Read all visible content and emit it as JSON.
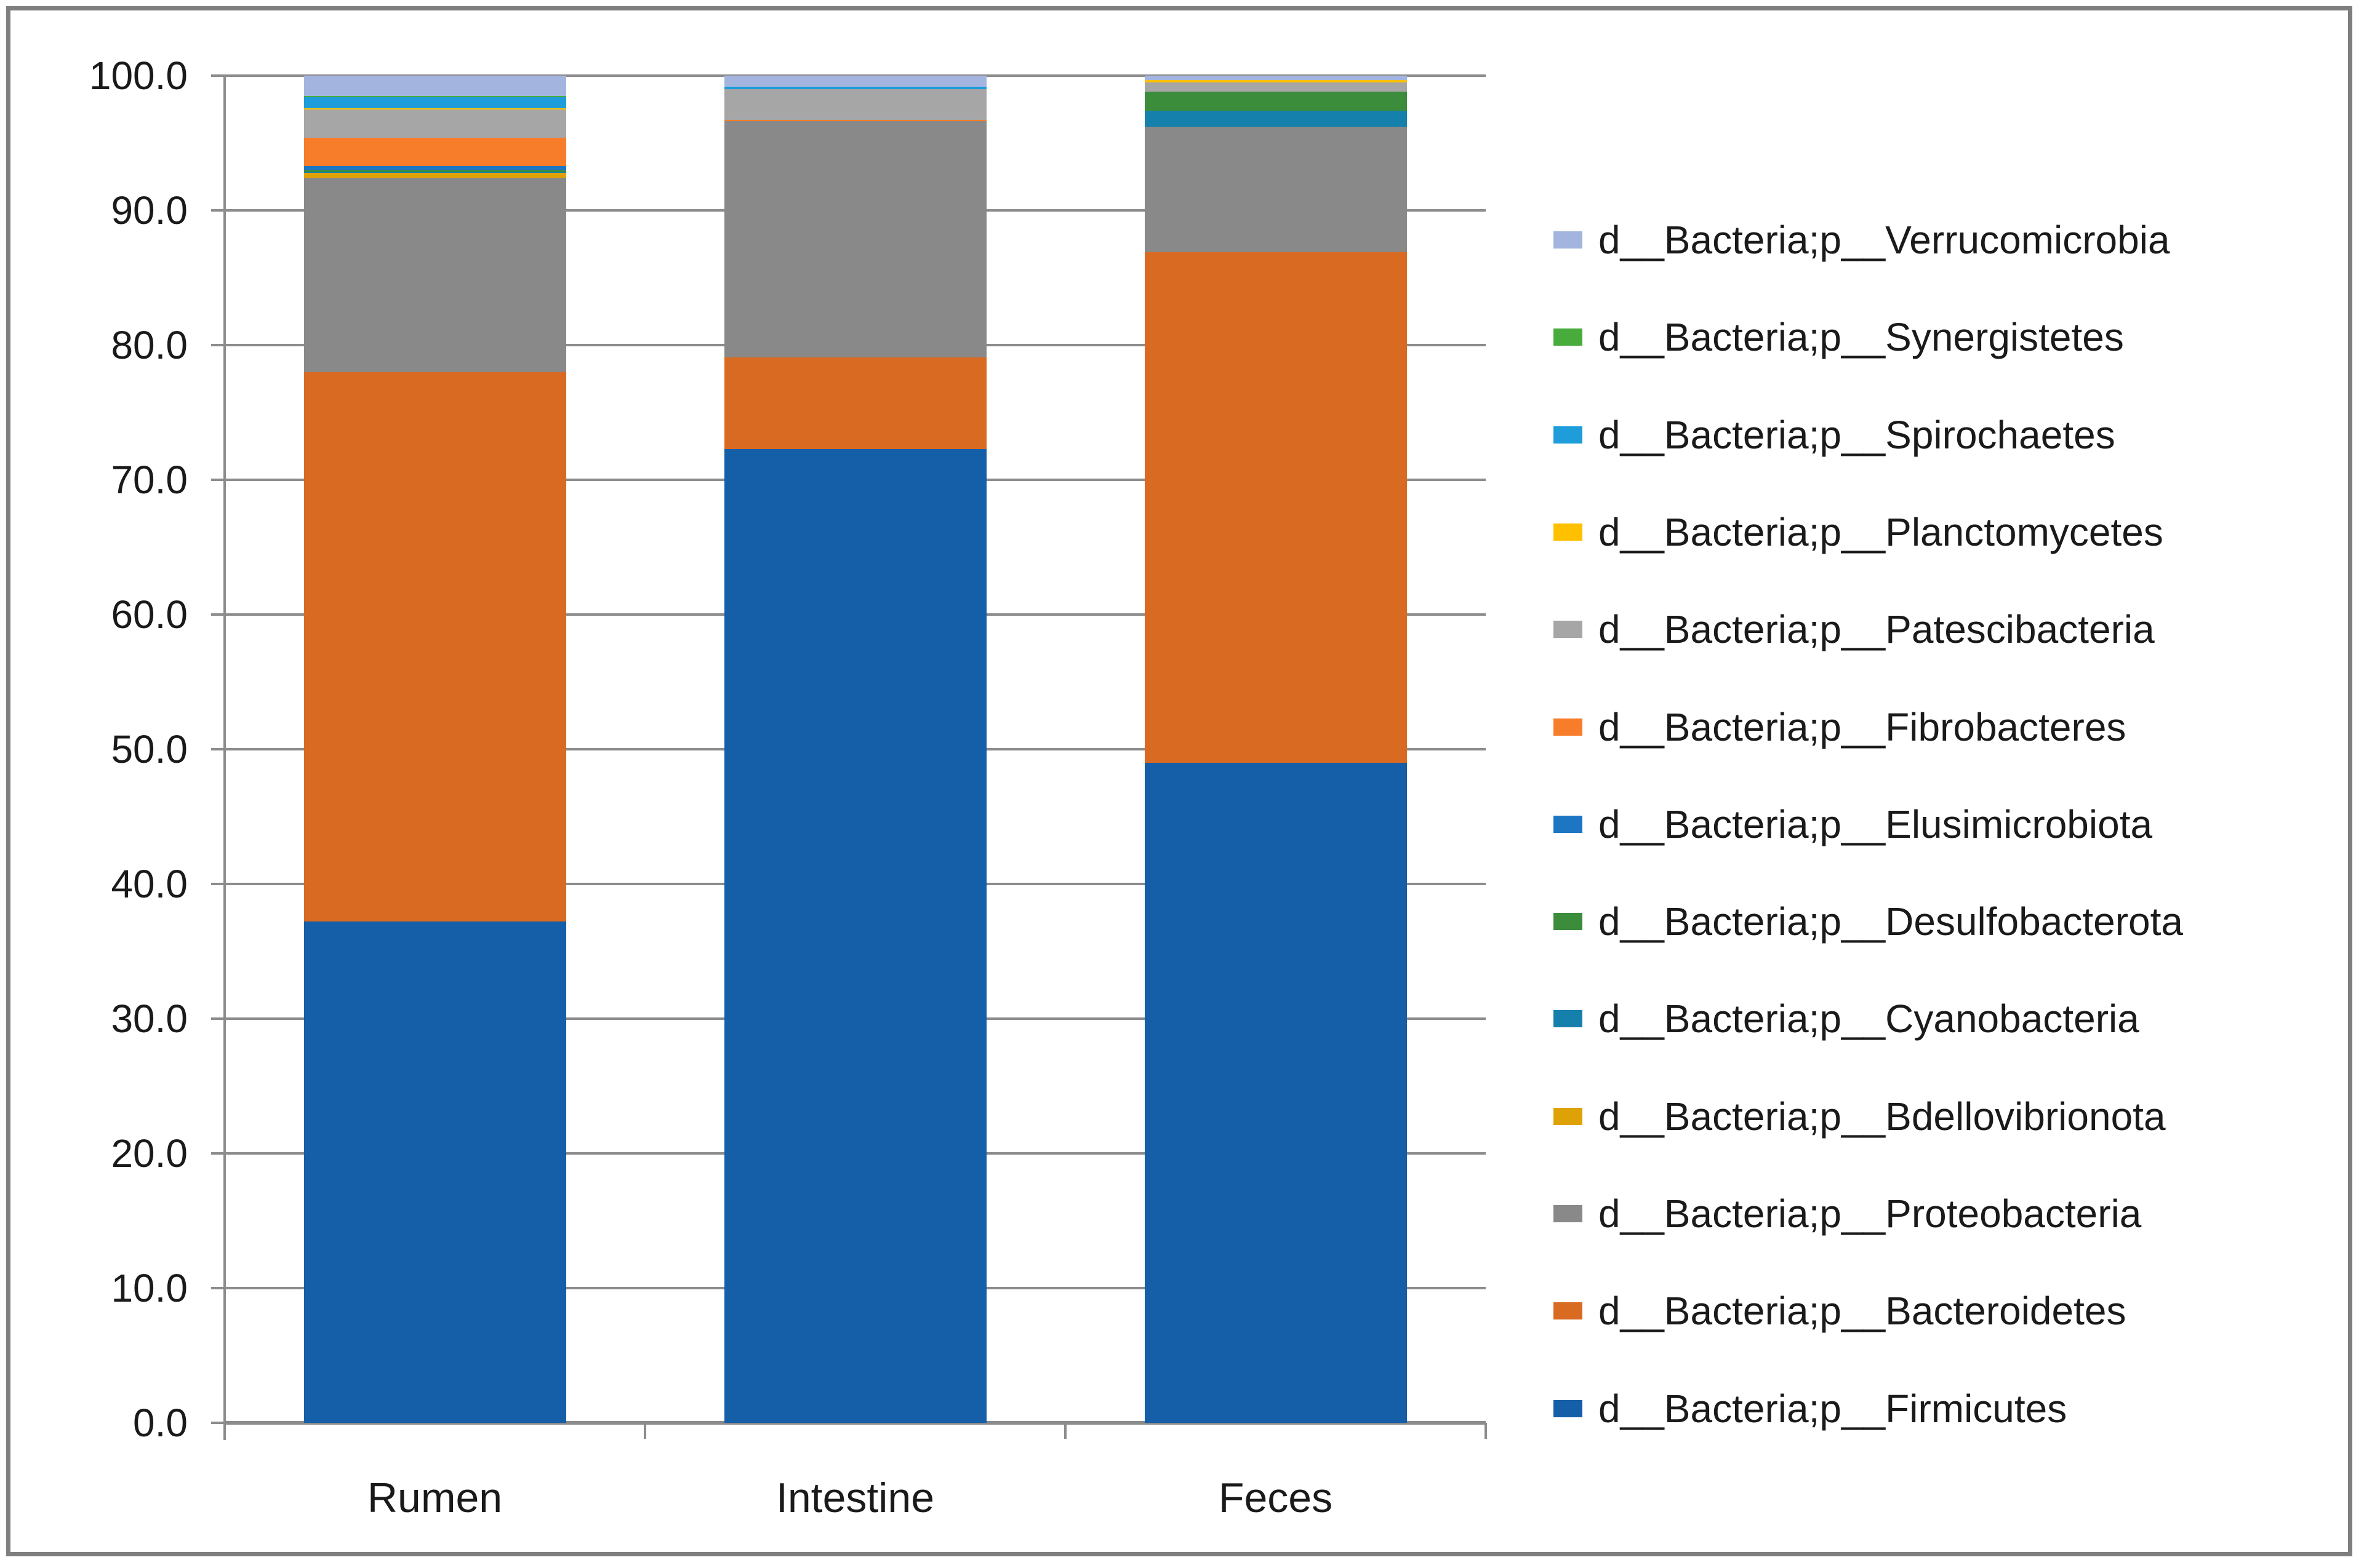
{
  "chart_data": {
    "type": "bar",
    "stacking": "percent",
    "title": "",
    "xlabel": "",
    "ylabel": "",
    "grid": true,
    "legend_position": "right",
    "legend_order": "reverse-of-stacking",
    "categories": [
      "Rumen",
      "Intestine",
      "Feces"
    ],
    "series": [
      {
        "name": "d__Bacteria;p__Firmicutes",
        "color": "#155EA8",
        "values": [
          37.2,
          72.3,
          49.0
        ]
      },
      {
        "name": "d__Bacteria;p__Bacteroidetes",
        "color": "#D96A22",
        "values": [
          40.8,
          6.8,
          37.9
        ]
      },
      {
        "name": "d__Bacteria;p__Proteobacteria",
        "color": "#898989",
        "values": [
          14.4,
          17.5,
          9.3
        ]
      },
      {
        "name": "d__Bacteria;p__Bdellovibrionota",
        "color": "#DFA206",
        "values": [
          0.4,
          0.0,
          0.0
        ]
      },
      {
        "name": "d__Bacteria;p__Cyanobacteria",
        "color": "#1680AC",
        "values": [
          0.1,
          0.0,
          1.2
        ]
      },
      {
        "name": "d__Bacteria;p__Desulfobacterota",
        "color": "#3B8C3B",
        "values": [
          0.1,
          0.0,
          1.4
        ]
      },
      {
        "name": "d__Bacteria;p__Elusimicrobiota",
        "color": "#1C76C4",
        "values": [
          0.3,
          0.0,
          0.0
        ]
      },
      {
        "name": "d__Bacteria;p__Fibrobacteres",
        "color": "#F87D2B",
        "values": [
          2.1,
          0.1,
          0.0
        ]
      },
      {
        "name": "d__Bacteria;p__Patescibacteria",
        "color": "#A6A6A6",
        "values": [
          2.1,
          2.3,
          0.7
        ]
      },
      {
        "name": "d__Bacteria;p__Planctomycetes",
        "color": "#FFC000",
        "values": [
          0.1,
          0.0,
          0.2
        ]
      },
      {
        "name": "d__Bacteria;p__Spirochaetes",
        "color": "#1E9DDA",
        "values": [
          0.8,
          0.2,
          0.0
        ]
      },
      {
        "name": "d__Bacteria;p__Synergistetes",
        "color": "#48AC3D",
        "values": [
          0.1,
          0.0,
          0.0
        ]
      },
      {
        "name": "d__Bacteria;p__Verrucomicrobia",
        "color": "#A3B5DF",
        "values": [
          1.5,
          0.8,
          0.3
        ]
      }
    ],
    "y_axis": {
      "min": 0,
      "max": 100,
      "step": 10,
      "tick_labels": [
        "0.0",
        "10.0",
        "20.0",
        "30.0",
        "40.0",
        "50.0",
        "60.0",
        "70.0",
        "80.0",
        "90.0",
        "100.0"
      ]
    },
    "colors": {
      "gridline": "#8C8C8C",
      "axis": "#8C8C8C",
      "border": "#7F7F7F",
      "text": "#1A1A1A",
      "background": "#FFFFFF"
    }
  }
}
